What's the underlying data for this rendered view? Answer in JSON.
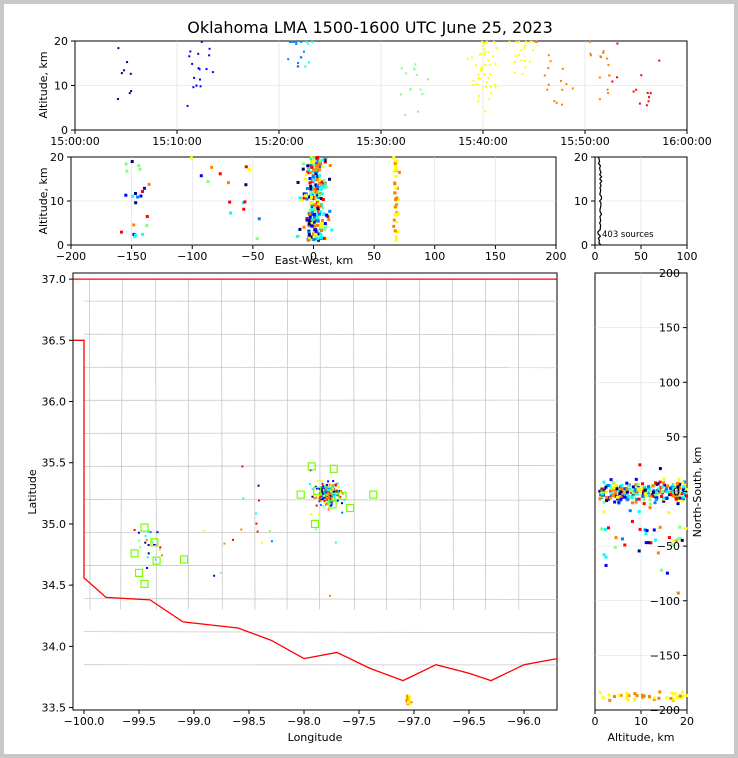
{
  "title": "Oklahoma LMA 1500-1600 UTC June 25, 2023",
  "source_count_label": "403 sources",
  "colors": {
    "state_border": "#ff0000",
    "county_lines": "#c8c8c8",
    "station_marker": "#7cfc00",
    "axes": "#000000",
    "grid": "#dddddd"
  },
  "colormap": [
    "#000080",
    "#0000ff",
    "#0080ff",
    "#00ffff",
    "#80ff80",
    "#ffff00",
    "#ff8000",
    "#ff0000"
  ],
  "chart_data": [
    {
      "name": "time-height",
      "type": "scatter",
      "xlabel": "",
      "ylabel": "Altitude, km",
      "xlim": [
        "15:00:00",
        "16:00:00"
      ],
      "ylim": [
        0,
        20
      ],
      "xticks": [
        "15:00:00",
        "15:10:00",
        "15:20:00",
        "15:30:00",
        "15:40:00",
        "15:50:00",
        "16:00:00"
      ],
      "yticks": [
        "0",
        "10",
        "20"
      ],
      "points_summary": "Sources colored by time; clusters near 15:05, 15:10-15:15, 15:20-15:25, 15:30-15:35, 15:40-15:47, 15:50-15:57 at 1-20 km"
    },
    {
      "name": "east-west-height",
      "type": "scatter",
      "xlabel": "East-West, km",
      "ylabel": "Altitude, km",
      "xlim": [
        -200,
        200
      ],
      "ylim": [
        0,
        20
      ],
      "xticks": [
        "−200",
        "−150",
        "−100",
        "−50",
        "0",
        "50",
        "100",
        "150",
        "200"
      ],
      "yticks": [
        "0",
        "10",
        "20"
      ],
      "points_summary": "Dense cluster between about -20 and 50 km, second cluster near 75-85 km, scattered sources near -150 to -110 km"
    },
    {
      "name": "altitude-histogram",
      "type": "line",
      "xlim": [
        0,
        100
      ],
      "ylim": [
        0,
        20
      ],
      "xticks": [
        "0",
        "50",
        "100"
      ],
      "yticks": [
        "0",
        "10",
        "20"
      ],
      "annotation": "403 sources"
    },
    {
      "name": "plan-view",
      "type": "scatter",
      "xlabel": "Longitude",
      "ylabel": "Latitude",
      "xlim": [
        -100.1,
        -95.7
      ],
      "ylim": [
        33.48,
        37.05
      ],
      "xticks": [
        "−100.0",
        "−99.5",
        "−99.0",
        "−98.5",
        "−98.0",
        "−97.5",
        "−97.0",
        "−96.5",
        "−96.0"
      ],
      "yticks": [
        "33.5",
        "34.0",
        "34.5",
        "35.0",
        "35.5",
        "36.0",
        "36.5",
        "37.0"
      ],
      "stations": [
        [
          -97.93,
          35.47
        ],
        [
          -97.73,
          35.45
        ],
        [
          -97.88,
          35.27
        ],
        [
          -97.74,
          35.16
        ],
        [
          -97.65,
          35.23
        ],
        [
          -97.58,
          35.13
        ],
        [
          -97.37,
          35.24
        ],
        [
          -98.03,
          35.24
        ],
        [
          -97.9,
          35.0
        ],
        [
          -99.45,
          34.97
        ],
        [
          -99.36,
          34.85
        ],
        [
          -99.54,
          34.76
        ],
        [
          -99.34,
          34.7
        ],
        [
          -99.5,
          34.6
        ],
        [
          -99.45,
          34.51
        ],
        [
          -99.09,
          34.71
        ]
      ],
      "points_summary": "Main cluster near -97.8, 35.2; cluster near -97.05, 33.55; sparse sources elsewhere"
    },
    {
      "name": "north-south-height",
      "type": "scatter",
      "xlabel": "Altitude, km",
      "ylabel": "North-South, km",
      "xlim": [
        0,
        20
      ],
      "ylim": [
        -200,
        200
      ],
      "xticks": [
        "0",
        "10",
        "20"
      ],
      "yticks": [
        "−200",
        "−150",
        "−100",
        "−50",
        "0",
        "50",
        "100",
        "150",
        "200"
      ],
      "points_summary": "Dense cluster between -80 and 50 km, cluster near -190 km"
    }
  ]
}
